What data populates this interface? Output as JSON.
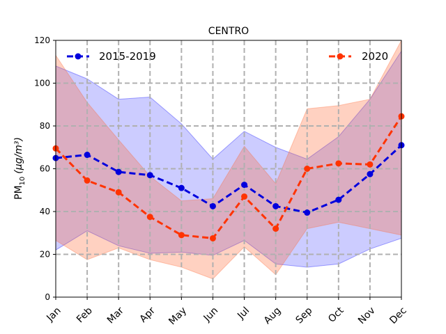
{
  "chart_data": {
    "type": "line",
    "title": "CENTRO",
    "ylabel_main": "PM",
    "ylabel_sub": "10",
    "ylabel_unit": "(μg/m³)",
    "xlabel": "",
    "categories": [
      "Jan",
      "Feb",
      "Mar",
      "Apr",
      "May",
      "Jun",
      "Jul",
      "Aug",
      "Sep",
      "Oct",
      "Nov",
      "Dec"
    ],
    "ylim": [
      0,
      120
    ],
    "yticks": [
      0,
      20,
      40,
      60,
      80,
      100,
      120
    ],
    "grid": true,
    "legend": [
      "top-left",
      "top-right"
    ],
    "series": [
      {
        "name": "2015-2019",
        "color": "#0000dd",
        "band_color": "#0000ff",
        "values": [
          65,
          66.5,
          58.5,
          57,
          51,
          42.5,
          52.5,
          42.5,
          39.5,
          45.5,
          57.5,
          71
        ],
        "upper": [
          108,
          102,
          92.5,
          93.5,
          81,
          64.5,
          77.5,
          70,
          64.5,
          75,
          92.5,
          115
        ],
        "lower": [
          22,
          31,
          24,
          20.5,
          21,
          19.5,
          26.5,
          15.5,
          14,
          15.5,
          22.5,
          27.5
        ]
      },
      {
        "name": "2020",
        "color": "#ff3300",
        "band_color": "#ff6633",
        "values": [
          69.5,
          54.5,
          49,
          37.5,
          29,
          27.5,
          47,
          32,
          60,
          62.5,
          62,
          84.5
        ],
        "upper": [
          113,
          91,
          73.5,
          56.5,
          45,
          46,
          70.5,
          53,
          88,
          89.5,
          92.5,
          128
        ],
        "lower": [
          26.5,
          17.5,
          23,
          17.5,
          14,
          8.5,
          23.5,
          10.5,
          32,
          35,
          32,
          29
        ]
      }
    ]
  }
}
